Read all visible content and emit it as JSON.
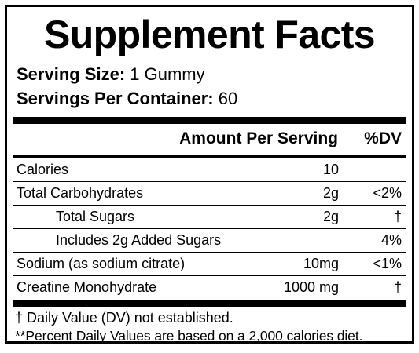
{
  "title": "Supplement Facts",
  "serving": {
    "size_label": "Serving Size:",
    "size_value": "1 Gummy",
    "per_container_label": "Servings Per Container:",
    "per_container_value": "60"
  },
  "header": {
    "amount": "Amount Per Serving",
    "dv": "%DV"
  },
  "rows": [
    {
      "name": "Calories",
      "amount": "10",
      "dv": "",
      "indent": false
    },
    {
      "name": "Total Carbohydrates",
      "amount": "2g",
      "dv": "<2%",
      "indent": false
    },
    {
      "name": "Total Sugars",
      "amount": "2g",
      "dv": "†",
      "indent": true
    },
    {
      "name": "Includes 2g Added Sugars",
      "amount": "",
      "dv": "4%",
      "indent": true
    },
    {
      "name": "Sodium (as sodium citrate)",
      "amount": "10mg",
      "dv": "<1%",
      "indent": false
    },
    {
      "name": "Creatine Monohydrate",
      "amount": "1000 mg",
      "dv": "†",
      "indent": false
    }
  ],
  "footnotes": [
    "† Daily Value (DV) not established.",
    "**Percent Daily Values are based on a 2,000 calories diet."
  ]
}
